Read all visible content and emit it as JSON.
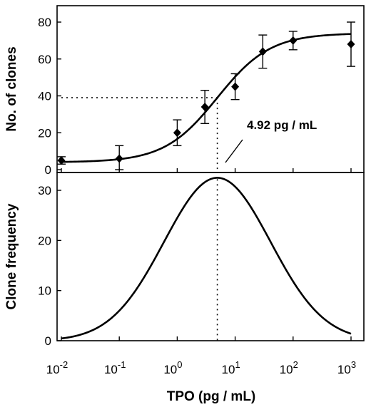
{
  "chart_data": [
    {
      "type": "scatter",
      "panel": "top",
      "xscale": "log",
      "xlim": [
        0.01,
        1000
      ],
      "ylim": [
        0,
        85
      ],
      "ylabel": "No. of clones",
      "yticks": [
        0,
        20,
        40,
        60,
        80
      ],
      "points": [
        {
          "x": 0.01,
          "y": 5,
          "err": 2
        },
        {
          "x": 0.1,
          "y": 6,
          "err": 7
        },
        {
          "x": 1,
          "y": 20,
          "err": 7
        },
        {
          "x": 3,
          "y": 34,
          "err": 9
        },
        {
          "x": 10,
          "y": 45,
          "err": 7
        },
        {
          "x": 30,
          "y": 64,
          "err": 9
        },
        {
          "x": 100,
          "y": 70,
          "err": 5
        },
        {
          "x": 1000,
          "y": 68,
          "err": 12
        }
      ],
      "fit": {
        "model": "sigmoid",
        "bottom": 4,
        "top": 74,
        "ec50": 4.92,
        "hill": 0.95
      },
      "reference_y": 39,
      "annotation": "4.92 pg / mL"
    },
    {
      "type": "line",
      "panel": "bottom",
      "xscale": "log",
      "xlim": [
        0.01,
        1000
      ],
      "ylim": [
        0,
        33
      ],
      "ylabel": "Clone frequency",
      "yticks": [
        0,
        10,
        20,
        30
      ],
      "peak": {
        "x": 4.92,
        "y": 32.5
      },
      "xlabel": "TPO (pg / mL)"
    }
  ],
  "x_axis": {
    "ticks": [
      {
        "base": "10",
        "exp": "-2"
      },
      {
        "base": "10",
        "exp": "-1"
      },
      {
        "base": "10",
        "exp": "0"
      },
      {
        "base": "10",
        "exp": "1"
      },
      {
        "base": "10",
        "exp": "2"
      },
      {
        "base": "10",
        "exp": "3"
      }
    ]
  }
}
